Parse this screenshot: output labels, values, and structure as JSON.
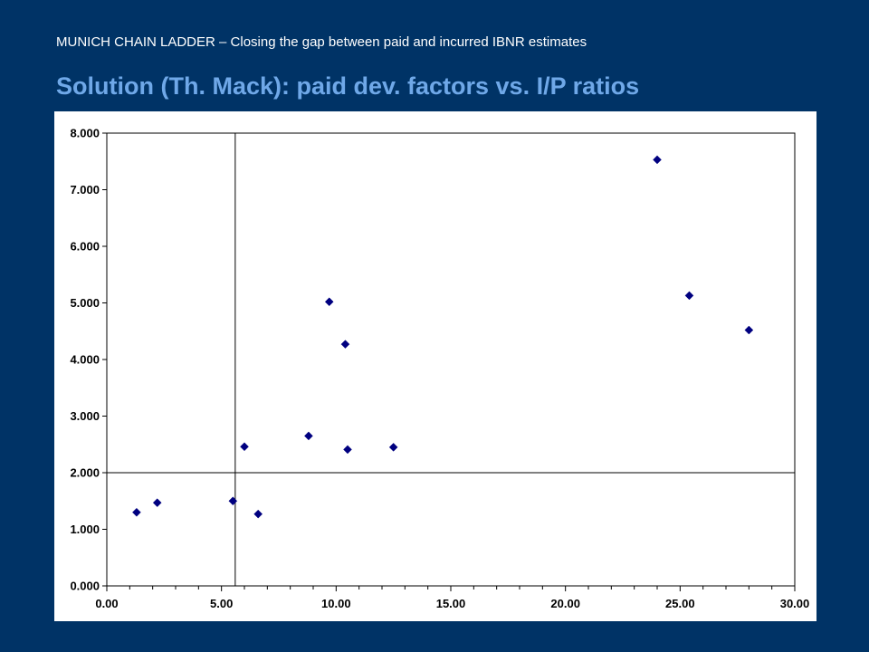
{
  "header": {
    "subtitle": "MUNICH CHAIN LADDER – Closing the gap between paid and incurred IBNR estimates",
    "title": "Solution (Th. Mack): paid dev. factors vs. I/P ratios"
  },
  "colors": {
    "background": "#003366",
    "title": "#6fa8e8",
    "marker": "#000080",
    "panel": "#ffffff"
  },
  "chart_data": {
    "type": "scatter",
    "title": "",
    "xlabel": "",
    "ylabel": "",
    "xlim": [
      0,
      30
    ],
    "ylim": [
      0,
      8
    ],
    "grid": false,
    "legend": "none",
    "marker": "diamond",
    "x_ticks": [
      0,
      5,
      10,
      15,
      20,
      25,
      30
    ],
    "x_tick_labels": [
      "0.00",
      "5.00",
      "10.00",
      "15.00",
      "20.00",
      "25.00",
      "30.00"
    ],
    "y_ticks": [
      0,
      1,
      2,
      3,
      4,
      5,
      6,
      7,
      8
    ],
    "y_tick_labels": [
      "0.000",
      "1.000",
      "2.000",
      "3.000",
      "4.000",
      "5.000",
      "6.000",
      "7.000",
      "8.000"
    ],
    "reference_lines": {
      "x": 5.6,
      "y": 2.0
    },
    "series": [
      {
        "points": [
          {
            "x": 1.3,
            "y": 1.3
          },
          {
            "x": 2.2,
            "y": 1.47
          },
          {
            "x": 5.5,
            "y": 1.5
          },
          {
            "x": 6.0,
            "y": 2.46
          },
          {
            "x": 6.6,
            "y": 1.27
          },
          {
            "x": 8.8,
            "y": 2.65
          },
          {
            "x": 9.7,
            "y": 5.02
          },
          {
            "x": 10.4,
            "y": 4.27
          },
          {
            "x": 10.5,
            "y": 2.41
          },
          {
            "x": 12.5,
            "y": 2.45
          },
          {
            "x": 24.0,
            "y": 7.53
          },
          {
            "x": 25.4,
            "y": 5.13
          },
          {
            "x": 28.0,
            "y": 4.52
          }
        ]
      }
    ]
  }
}
